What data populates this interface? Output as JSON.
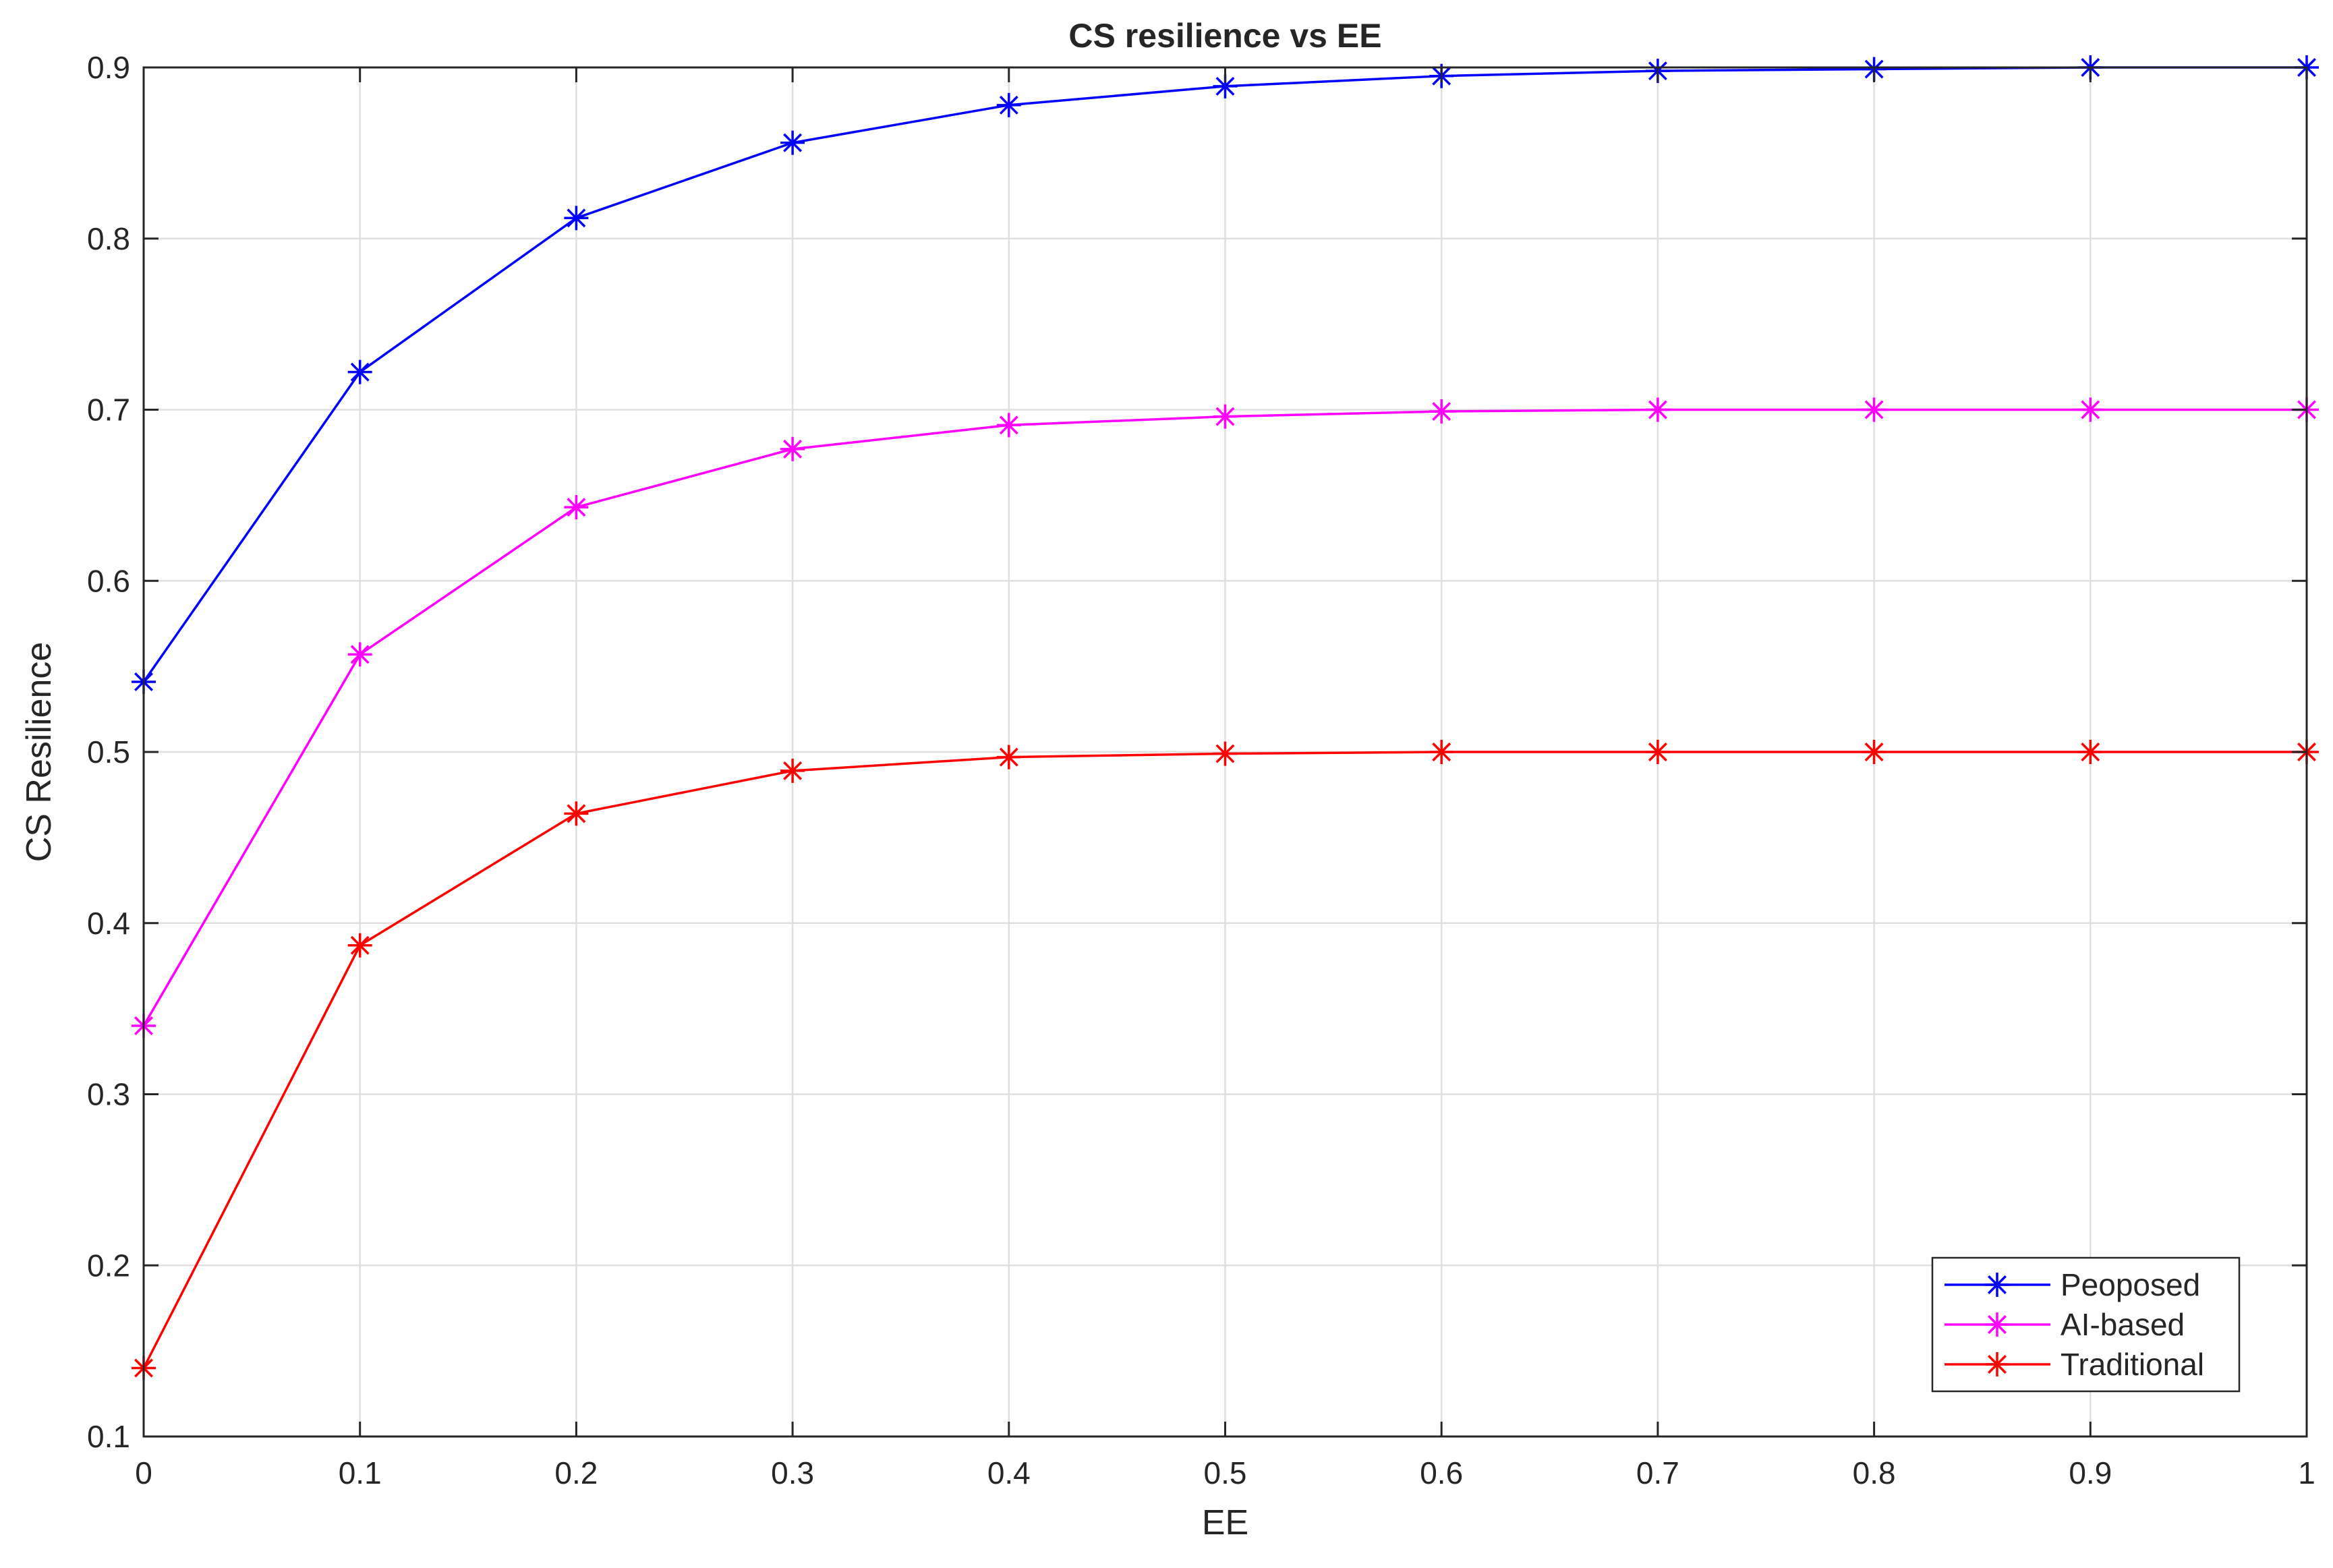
{
  "chart_data": {
    "type": "line",
    "title": "CS resilience vs EE",
    "xlabel": "EE",
    "ylabel": "CS Resilience",
    "xlim": [
      0,
      1
    ],
    "ylim": [
      0.1,
      0.9
    ],
    "x_ticks": [
      0,
      0.1,
      0.2,
      0.3,
      0.4,
      0.5,
      0.6,
      0.7,
      0.8,
      0.9,
      1
    ],
    "y_ticks": [
      0.1,
      0.2,
      0.3,
      0.4,
      0.5,
      0.6,
      0.7,
      0.8,
      0.9
    ],
    "x_tick_labels": [
      "0",
      "0.1",
      "0.2",
      "0.3",
      "0.4",
      "0.5",
      "0.6",
      "0.7",
      "0.8",
      "0.9",
      "1"
    ],
    "y_tick_labels": [
      "0.1",
      "0.2",
      "0.3",
      "0.4",
      "0.5",
      "0.6",
      "0.7",
      "0.8",
      "0.9"
    ],
    "grid": true,
    "legend_position": "bottom-right",
    "x": [
      0,
      0.1,
      0.2,
      0.3,
      0.4,
      0.5,
      0.6,
      0.7,
      0.8,
      0.9,
      1
    ],
    "series": [
      {
        "name": "Peoposed",
        "color": "#0000ff",
        "marker": "asterisk",
        "values": [
          0.541,
          0.722,
          0.812,
          0.856,
          0.878,
          0.889,
          0.895,
          0.898,
          0.899,
          0.9,
          0.9
        ]
      },
      {
        "name": "AI-based",
        "color": "#ff00ff",
        "marker": "asterisk",
        "values": [
          0.34,
          0.557,
          0.643,
          0.677,
          0.691,
          0.696,
          0.699,
          0.7,
          0.7,
          0.7,
          0.7
        ]
      },
      {
        "name": "Traditional",
        "color": "#ff0000",
        "marker": "asterisk",
        "values": [
          0.14,
          0.387,
          0.464,
          0.489,
          0.497,
          0.499,
          0.5,
          0.5,
          0.5,
          0.5,
          0.5
        ]
      }
    ]
  }
}
